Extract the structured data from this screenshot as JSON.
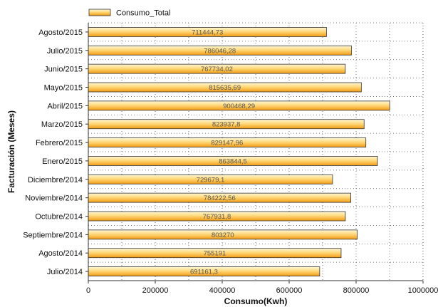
{
  "chart_data": {
    "type": "bar",
    "orientation": "horizontal",
    "categories": [
      "Agosto/2015",
      "Julio/2015",
      "Junio/2015",
      "Mayo/2015",
      "Abril/2015",
      "Marzo/2015",
      "Febrero/2015",
      "Enero/2015",
      "Diciembre/2014",
      "Noviembre/2014",
      "Octubre/2014",
      "Septiembre/2014",
      "Agosto/2014",
      "Julio/2014"
    ],
    "series": [
      {
        "name": "Consumo_Total",
        "values": [
          711444.73,
          786046.28,
          767734.02,
          815635.69,
          900468.29,
          823937.8,
          829147.96,
          863844.5,
          729679.1,
          784222.56,
          767931.8,
          803270,
          755191,
          691161.3
        ],
        "data_labels": [
          "711444,73",
          "786046,28",
          "767734,02",
          "815635,69",
          "900468,29",
          "823937,8",
          "829147,96",
          "863844,5",
          "729679,1",
          "784222,56",
          "767931,8",
          "803270",
          "755191",
          "691161,3"
        ]
      }
    ],
    "xlabel": "Consumo(Kwh)",
    "ylabel": "Facturación (Meses)",
    "xlim": [
      0,
      1000000
    ],
    "xticks": [
      0,
      200000,
      400000,
      600000,
      800000,
      1000000
    ],
    "xtick_labels": [
      "0",
      "200000",
      "400000",
      "600000",
      "800000",
      "1000000"
    ],
    "grid": true,
    "legend_position": "top-left",
    "colors": {
      "bar_fill_light": "#ffe9a8",
      "bar_fill_dark": "#f7a21a",
      "bar_stroke": "#333333",
      "grid": "#555555"
    }
  }
}
